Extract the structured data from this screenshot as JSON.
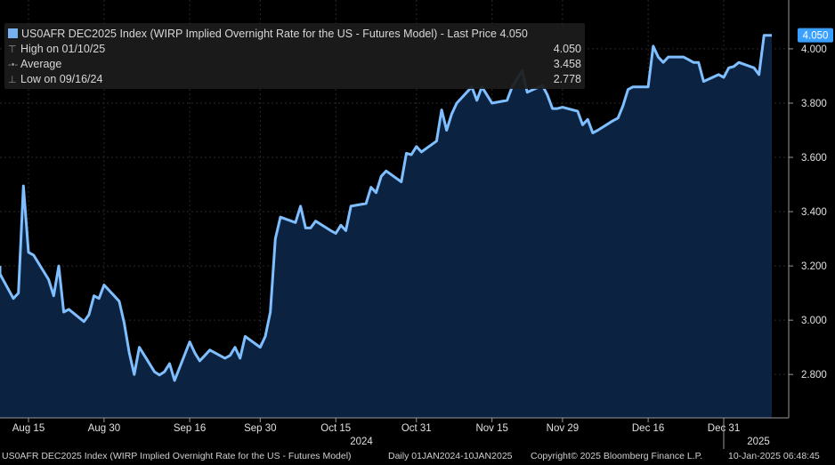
{
  "chart_data": {
    "type": "area",
    "ticker_title": "US0AFR DEC2025 Index (WIRP Implied Overnight Rate for the US - Futures Model) - Last Price",
    "last_price": "4.050",
    "stats": [
      {
        "label": "High on 01/10/25",
        "value": "4.050",
        "glyph": "⊤"
      },
      {
        "label": "Average",
        "value": "3.458",
        "glyph": "-•-"
      },
      {
        "label": "Low on 09/16/24",
        "value": "2.778",
        "glyph": "⊥"
      }
    ],
    "ylim": [
      2.64,
      4.18
    ],
    "y_ticks": [
      "2.800",
      "3.000",
      "3.200",
      "3.400",
      "3.600",
      "3.800",
      "4.000"
    ],
    "x_ticks": [
      "Aug 15",
      "Aug 30",
      "Sep 16",
      "Sep 30",
      "Oct 15",
      "Oct 31",
      "Nov 15",
      "Nov 29",
      "Dec 16",
      "Dec 31"
    ],
    "year_labels": [
      "2024",
      "2025"
    ],
    "series": [
      {
        "dates": [
          "2024-08-08",
          "2024-08-09",
          "2024-08-12",
          "2024-08-13",
          "2024-08-14",
          "2024-08-15",
          "2024-08-16",
          "2024-08-19",
          "2024-08-20",
          "2024-08-21",
          "2024-08-22",
          "2024-08-23",
          "2024-08-26",
          "2024-08-27",
          "2024-08-28",
          "2024-08-29",
          "2024-08-30",
          "2024-09-02",
          "2024-09-03",
          "2024-09-04",
          "2024-09-05",
          "2024-09-06",
          "2024-09-09",
          "2024-09-10",
          "2024-09-11",
          "2024-09-12",
          "2024-09-13",
          "2024-09-16",
          "2024-09-17",
          "2024-09-18",
          "2024-09-19",
          "2024-09-20",
          "2024-09-23",
          "2024-09-24",
          "2024-09-25",
          "2024-09-26",
          "2024-09-27",
          "2024-09-30",
          "2024-10-01",
          "2024-10-02",
          "2024-10-03",
          "2024-10-04",
          "2024-10-07",
          "2024-10-08",
          "2024-10-09",
          "2024-10-10",
          "2024-10-11",
          "2024-10-14",
          "2024-10-15",
          "2024-10-16",
          "2024-10-17",
          "2024-10-18",
          "2024-10-21",
          "2024-10-22",
          "2024-10-23",
          "2024-10-24",
          "2024-10-25",
          "2024-10-28",
          "2024-10-29",
          "2024-10-30",
          "2024-10-31",
          "2024-11-01",
          "2024-11-04",
          "2024-11-05",
          "2024-11-06",
          "2024-11-07",
          "2024-11-08",
          "2024-11-11",
          "2024-11-12",
          "2024-11-13",
          "2024-11-14",
          "2024-11-15",
          "2024-11-18",
          "2024-11-19",
          "2024-11-20",
          "2024-11-21",
          "2024-11-22",
          "2024-11-25",
          "2024-11-26",
          "2024-11-27",
          "2024-11-28",
          "2024-11-29",
          "2024-12-02",
          "2024-12-03",
          "2024-12-04",
          "2024-12-05",
          "2024-12-06",
          "2024-12-09",
          "2024-12-10",
          "2024-12-11",
          "2024-12-12",
          "2024-12-13",
          "2024-12-16",
          "2024-12-17",
          "2024-12-18",
          "2024-12-19",
          "2024-12-20",
          "2024-12-23",
          "2024-12-24",
          "2024-12-25",
          "2024-12-26",
          "2024-12-27",
          "2024-12-30",
          "2024-12-31",
          "2025-01-01",
          "2025-01-02",
          "2025-01-03",
          "2025-01-06",
          "2025-01-07",
          "2025-01-08",
          "2025-01-09",
          "2025-01-10"
        ],
        "values": [
          3.2,
          3.17,
          3.08,
          3.1,
          3.495,
          3.25,
          3.24,
          3.15,
          3.09,
          3.2,
          3.03,
          3.04,
          2.995,
          3.02,
          3.09,
          3.08,
          3.13,
          3.07,
          2.99,
          2.88,
          2.8,
          2.9,
          2.81,
          2.798,
          2.81,
          2.84,
          2.778,
          2.92,
          2.88,
          2.85,
          2.87,
          2.89,
          2.86,
          2.87,
          2.9,
          2.86,
          2.94,
          2.9,
          2.94,
          3.03,
          3.3,
          3.38,
          3.36,
          3.42,
          3.34,
          3.34,
          3.365,
          3.33,
          3.32,
          3.35,
          3.33,
          3.42,
          3.43,
          3.49,
          3.47,
          3.53,
          3.55,
          3.51,
          3.615,
          3.61,
          3.64,
          3.62,
          3.66,
          3.775,
          3.7,
          3.76,
          3.8,
          3.86,
          3.81,
          3.86,
          3.83,
          3.8,
          3.81,
          3.86,
          3.89,
          3.92,
          3.84,
          3.865,
          3.83,
          3.78,
          3.78,
          3.785,
          3.77,
          3.72,
          3.74,
          3.69,
          3.7,
          3.735,
          3.745,
          3.79,
          3.85,
          3.86,
          3.86,
          4.01,
          3.97,
          3.95,
          3.97,
          3.97,
          3.96,
          3.95,
          3.95,
          3.88,
          3.905,
          3.895,
          3.93,
          3.935,
          3.95,
          3.93,
          3.905,
          4.05,
          4.05,
          4.05
        ]
      }
    ],
    "colors": {
      "line": "#7fbfff",
      "area": "#0b2340",
      "grid": "#2a2a2a",
      "badge": "#3aa0ff"
    }
  },
  "footer": {
    "description": "US0AFR DEC2025 Index (WIRP Implied Overnight Rate for the US - Futures Model)",
    "period": "Daily 01JAN2024-10JAN2025",
    "copyright": "Copyright© 2025 Bloomberg Finance L.P.",
    "timestamp": "10-Jan-2025 06:48:45"
  }
}
